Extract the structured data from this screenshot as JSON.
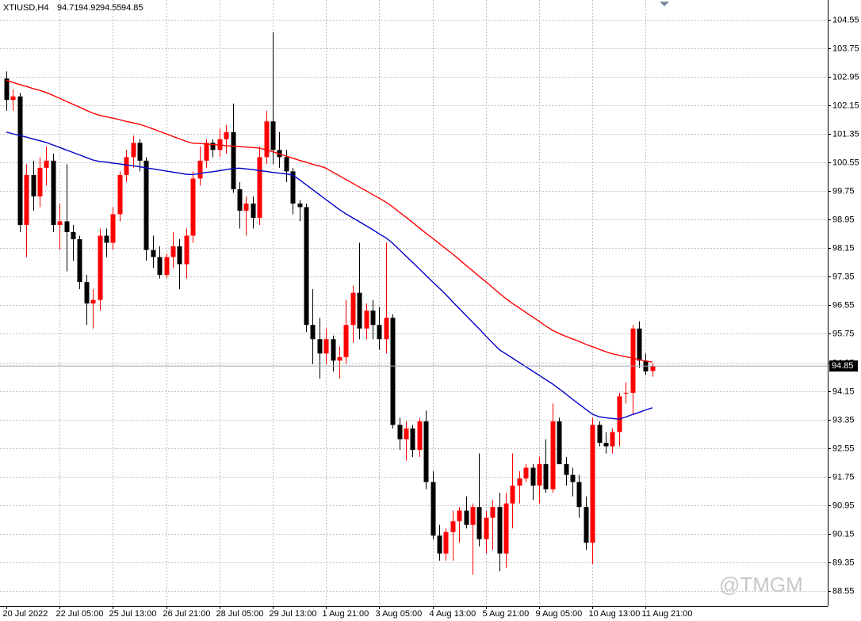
{
  "chart_data": {
    "type": "candlestick",
    "title": "XTIUSD,H4",
    "header_values": [
      94.71,
      94.92,
      94.55,
      94.85
    ],
    "current_price": 94.85,
    "watermark": "@TMGM",
    "bull_color": "#ff0000",
    "bear_color": "#000000",
    "grid": true,
    "ylim": [
      88.13,
      105.1
    ],
    "yticks": [
      88.55,
      89.35,
      90.15,
      90.95,
      91.75,
      92.55,
      93.35,
      94.15,
      94.95,
      95.75,
      96.55,
      97.35,
      98.15,
      98.95,
      99.75,
      100.55,
      101.35,
      102.15,
      102.95,
      103.75,
      104.55
    ],
    "categories": [
      "20 Jul 2022",
      null,
      null,
      null,
      null,
      null,
      null,
      null,
      "22 Jul 05:00",
      null,
      null,
      null,
      null,
      null,
      null,
      null,
      "25 Jul 13:00",
      null,
      null,
      null,
      null,
      null,
      null,
      null,
      "26 Jul 21:00",
      null,
      null,
      null,
      null,
      null,
      null,
      null,
      "28 Jul 05:00",
      null,
      null,
      null,
      null,
      null,
      null,
      null,
      "29 Jul 13:00",
      null,
      null,
      null,
      null,
      null,
      null,
      null,
      "1 Aug 21:00",
      null,
      null,
      null,
      null,
      null,
      null,
      null,
      "3 Aug 05:00",
      null,
      null,
      null,
      null,
      null,
      null,
      null,
      "4 Aug 13:00",
      null,
      null,
      null,
      null,
      null,
      null,
      null,
      "5 Aug 21:00",
      null,
      null,
      null,
      null,
      null,
      null,
      null,
      "9 Aug 05:00",
      null,
      null,
      null,
      null,
      null,
      null,
      null,
      "10 Aug 13:00",
      null,
      null,
      null,
      null,
      null,
      null,
      null,
      "11 Aug 21:00",
      null
    ],
    "ohlc": [
      [
        102.9,
        103.1,
        102.0,
        102.3
      ],
      [
        102.3,
        102.6,
        102.0,
        102.4
      ],
      [
        102.4,
        102.5,
        98.6,
        98.8
      ],
      [
        98.8,
        100.5,
        97.9,
        100.2
      ],
      [
        100.2,
        100.6,
        99.2,
        99.6
      ],
      [
        99.6,
        100.7,
        99.3,
        100.4
      ],
      [
        100.4,
        101.0,
        99.9,
        100.6
      ],
      [
        100.6,
        100.8,
        98.6,
        98.8
      ],
      [
        98.8,
        99.4,
        98.1,
        98.9
      ],
      [
        98.9,
        100.5,
        97.5,
        98.6
      ],
      [
        98.6,
        98.8,
        97.8,
        98.4
      ],
      [
        98.4,
        98.5,
        97.0,
        97.2
      ],
      [
        97.2,
        97.4,
        96.0,
        96.6
      ],
      [
        96.6,
        97.0,
        95.9,
        96.7
      ],
      [
        96.7,
        98.7,
        96.4,
        98.5
      ],
      [
        98.5,
        98.7,
        97.9,
        98.3
      ],
      [
        98.3,
        99.3,
        98.1,
        99.1
      ],
      [
        99.1,
        100.3,
        98.9,
        100.2
      ],
      [
        100.2,
        100.9,
        100.0,
        100.7
      ],
      [
        100.7,
        101.3,
        100.4,
        101.1
      ],
      [
        101.1,
        101.2,
        100.3,
        100.6
      ],
      [
        100.6,
        100.7,
        97.8,
        98.1
      ],
      [
        98.1,
        98.5,
        97.6,
        97.9
      ],
      [
        97.9,
        98.2,
        97.3,
        97.4
      ],
      [
        97.4,
        98.0,
        97.3,
        97.9
      ],
      [
        97.9,
        98.6,
        97.6,
        98.2
      ],
      [
        98.2,
        98.4,
        97.0,
        97.7
      ],
      [
        97.7,
        98.7,
        97.3,
        98.5
      ],
      [
        98.5,
        100.3,
        98.3,
        100.1
      ],
      [
        100.1,
        101.0,
        99.9,
        100.6
      ],
      [
        100.6,
        101.2,
        100.4,
        101.1
      ],
      [
        101.1,
        101.2,
        100.7,
        100.9
      ],
      [
        100.9,
        101.5,
        100.7,
        101.2
      ],
      [
        101.2,
        101.6,
        100.8,
        101.4
      ],
      [
        101.4,
        102.2,
        99.7,
        99.8
      ],
      [
        99.8,
        100.0,
        98.7,
        99.2
      ],
      [
        99.2,
        99.6,
        98.5,
        99.4
      ],
      [
        99.4,
        99.6,
        98.7,
        99.0
      ],
      [
        99.0,
        101.0,
        98.8,
        100.7
      ],
      [
        100.7,
        102.0,
        100.5,
        101.7
      ],
      [
        101.7,
        104.2,
        100.5,
        100.9
      ],
      [
        100.9,
        101.4,
        100.4,
        100.7
      ],
      [
        100.7,
        100.9,
        100.0,
        100.3
      ],
      [
        100.3,
        100.4,
        99.1,
        99.4
      ],
      [
        99.4,
        99.5,
        98.9,
        99.3
      ],
      [
        99.3,
        99.4,
        95.8,
        96.0
      ],
      [
        96.0,
        97.0,
        94.9,
        95.6
      ],
      [
        95.6,
        96.2,
        94.5,
        95.2
      ],
      [
        95.2,
        95.9,
        94.9,
        95.6
      ],
      [
        95.6,
        95.7,
        94.7,
        95.0
      ],
      [
        95.0,
        95.4,
        94.5,
        95.1
      ],
      [
        95.1,
        96.7,
        94.9,
        96.0
      ],
      [
        96.0,
        97.1,
        95.5,
        96.9
      ],
      [
        96.9,
        98.3,
        95.6,
        95.9
      ],
      [
        95.9,
        96.6,
        95.6,
        96.4
      ],
      [
        96.4,
        96.7,
        95.6,
        96.0
      ],
      [
        96.0,
        96.5,
        95.3,
        95.6
      ],
      [
        95.6,
        98.3,
        95.2,
        96.2
      ],
      [
        96.2,
        96.3,
        93.1,
        93.2
      ],
      [
        93.2,
        93.4,
        92.5,
        92.8
      ],
      [
        92.8,
        93.3,
        92.2,
        93.1
      ],
      [
        93.1,
        93.2,
        92.3,
        92.5
      ],
      [
        92.5,
        93.4,
        92.3,
        93.3
      ],
      [
        93.3,
        93.6,
        91.4,
        91.6
      ],
      [
        91.6,
        91.9,
        90.0,
        90.1
      ],
      [
        90.1,
        90.4,
        89.4,
        89.6
      ],
      [
        89.6,
        90.3,
        89.4,
        90.2
      ],
      [
        90.2,
        90.8,
        89.4,
        90.5
      ],
      [
        90.5,
        90.9,
        89.9,
        90.8
      ],
      [
        90.8,
        91.2,
        90.3,
        90.4
      ],
      [
        90.4,
        91.0,
        89.0,
        90.9
      ],
      [
        90.9,
        92.4,
        89.8,
        90.0
      ],
      [
        90.0,
        90.8,
        89.6,
        90.6
      ],
      [
        90.6,
        91.1,
        89.7,
        90.9
      ],
      [
        90.9,
        91.3,
        89.1,
        89.6
      ],
      [
        89.6,
        91.3,
        89.2,
        91.0
      ],
      [
        91.0,
        92.4,
        90.3,
        91.5
      ],
      [
        91.5,
        91.9,
        91.0,
        91.7
      ],
      [
        91.7,
        92.1,
        91.6,
        92.0
      ],
      [
        92.0,
        92.1,
        91.1,
        91.5
      ],
      [
        91.5,
        92.3,
        91.0,
        92.1
      ],
      [
        92.1,
        92.8,
        91.3,
        91.4
      ],
      [
        91.4,
        93.8,
        91.3,
        93.3
      ],
      [
        93.3,
        93.4,
        92.1,
        92.1
      ],
      [
        92.1,
        92.3,
        91.5,
        91.8
      ],
      [
        91.8,
        92.0,
        91.2,
        91.6
      ],
      [
        91.6,
        91.8,
        90.6,
        90.9
      ],
      [
        90.9,
        91.2,
        89.7,
        89.9
      ],
      [
        89.9,
        93.4,
        89.3,
        93.2
      ],
      [
        93.2,
        93.3,
        92.6,
        92.7
      ],
      [
        92.7,
        93.0,
        92.4,
        92.6
      ],
      [
        92.6,
        93.1,
        92.4,
        93.0
      ],
      [
        93.0,
        94.1,
        92.6,
        94.0
      ],
      [
        94.1,
        94.4,
        93.8,
        94.1
      ],
      [
        94.1,
        96.0,
        93.5,
        95.9
      ],
      [
        95.9,
        96.1,
        94.8,
        95.0
      ],
      [
        95.0,
        95.2,
        94.6,
        94.7
      ],
      [
        94.71,
        94.92,
        94.55,
        94.85
      ]
    ],
    "series": [
      {
        "color": "#ff0000",
        "values": [
          102.85,
          102.79,
          102.73,
          102.68,
          102.62,
          102.57,
          102.51,
          102.43,
          102.35,
          102.26,
          102.18,
          102.1,
          102.01,
          101.93,
          101.87,
          101.83,
          101.79,
          101.75,
          101.7,
          101.66,
          101.62,
          101.56,
          101.49,
          101.42,
          101.35,
          101.28,
          101.21,
          101.14,
          101.09,
          101.08,
          101.07,
          101.05,
          101.04,
          101.02,
          101.01,
          101.0,
          100.98,
          100.97,
          100.95,
          100.91,
          100.85,
          100.79,
          100.73,
          100.67,
          100.61,
          100.56,
          100.5,
          100.45,
          100.39,
          100.28,
          100.18,
          100.07,
          99.97,
          99.86,
          99.76,
          99.65,
          99.55,
          99.44,
          99.31,
          99.16,
          99.02,
          98.87,
          98.72,
          98.57,
          98.43,
          98.28,
          98.13,
          97.99,
          97.83,
          97.67,
          97.52,
          97.36,
          97.21,
          97.05,
          96.89,
          96.74,
          96.6,
          96.48,
          96.35,
          96.23,
          96.1,
          95.97,
          95.85,
          95.76,
          95.68,
          95.61,
          95.54,
          95.46,
          95.39,
          95.32,
          95.25,
          95.19,
          95.15,
          95.11,
          95.07,
          95.03,
          94.99,
          94.96
        ]
      },
      {
        "color": "#0000c8",
        "values": [
          101.4,
          101.35,
          101.31,
          101.26,
          101.21,
          101.16,
          101.11,
          101.04,
          100.97,
          100.9,
          100.83,
          100.76,
          100.69,
          100.62,
          100.58,
          100.56,
          100.53,
          100.51,
          100.48,
          100.46,
          100.43,
          100.4,
          100.37,
          100.34,
          100.31,
          100.28,
          100.25,
          100.22,
          100.21,
          100.24,
          100.27,
          100.29,
          100.32,
          100.35,
          100.38,
          100.39,
          100.37,
          100.35,
          100.32,
          100.3,
          100.27,
          100.25,
          100.23,
          100.2,
          100.07,
          99.93,
          99.79,
          99.65,
          99.51,
          99.37,
          99.23,
          99.11,
          99.0,
          98.89,
          98.78,
          98.67,
          98.55,
          98.44,
          98.29,
          98.11,
          97.93,
          97.75,
          97.57,
          97.39,
          97.21,
          97.03,
          96.85,
          96.65,
          96.46,
          96.27,
          96.08,
          95.89,
          95.69,
          95.5,
          95.31,
          95.19,
          95.07,
          94.95,
          94.83,
          94.71,
          94.59,
          94.47,
          94.35,
          94.21,
          94.07,
          93.92,
          93.78,
          93.64,
          93.5,
          93.43,
          93.4,
          93.38,
          93.36,
          93.42,
          93.49,
          93.55,
          93.62,
          93.68
        ]
      }
    ]
  }
}
